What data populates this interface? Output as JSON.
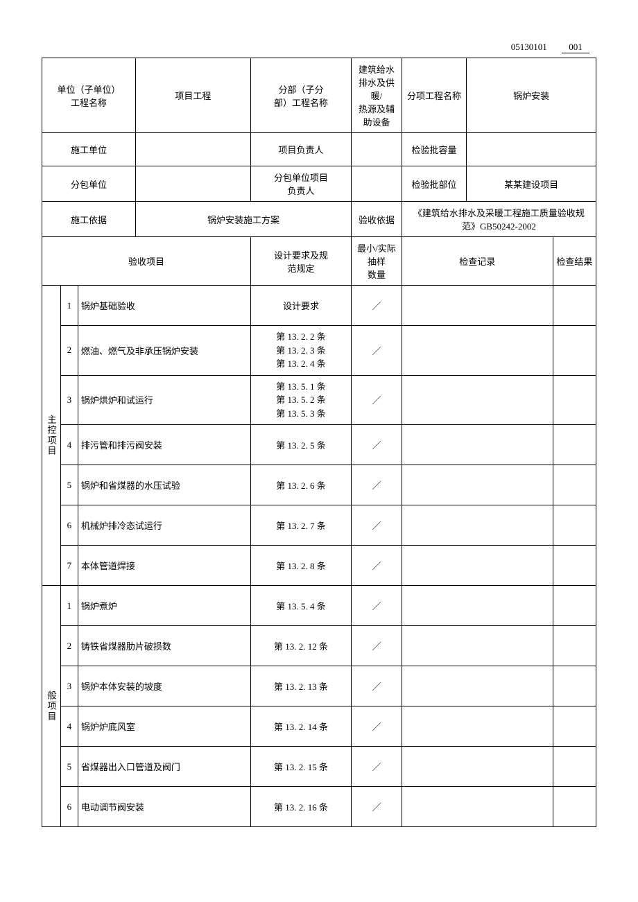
{
  "doc": {
    "code": "05130101",
    "serial": "001"
  },
  "header": {
    "r1": {
      "unit_label": "单位（子单位）\n工程名称",
      "project_label": "项目工程",
      "subpart_label": "分部（子分\n部）工程名称",
      "subpart_value": "建筑给水排水及供暖/\n热源及辅助设备",
      "subitem_label": "分项工程名称",
      "subitem_value": "锅炉安装"
    },
    "r2": {
      "constr_unit_label": "施工单位",
      "constr_unit_value": "",
      "pm_label": "项目负责人",
      "pm_value": "",
      "batch_qty_label": "检验批容量",
      "batch_qty_value": ""
    },
    "r3": {
      "subcontractor_label": "分包单位",
      "subcontractor_value": "",
      "sub_pm_label": "分包单位项目\n负责人",
      "sub_pm_value": "",
      "batch_loc_label": "检验批部位",
      "batch_loc_value": "某某建设项目"
    },
    "r4": {
      "basis_label": "施工依据",
      "basis_value": "锅炉安装施工方案",
      "accept_basis_label": "验收依据",
      "accept_basis_value": "《建筑给水排水及采暖工程施工质量验收规\n范》GB50242-2002"
    }
  },
  "columns": {
    "item": "验收项目",
    "requirement": "设计要求及规\n范规定",
    "sample": "最小/实际抽样\n数量",
    "record": "检查记录",
    "result": "检查结果"
  },
  "group_labels": {
    "main": "主控项目",
    "general": "般项目"
  },
  "main_items": [
    {
      "no": "1",
      "name": "锅炉基础验收",
      "req": "设计要求",
      "sample": "／"
    },
    {
      "no": "2",
      "name": "燃油、燃气及非承压锅炉安装",
      "req": "第 13. 2. 2 条\n第 13. 2. 3 条\n第 13. 2. 4 条",
      "sample": "／"
    },
    {
      "no": "3",
      "name": "锅炉烘炉和试运行",
      "req": "第 13. 5. 1 条\n第 13. 5. 2 条\n第 13. 5. 3 条",
      "sample": "／"
    },
    {
      "no": "4",
      "name": "排污管和排污阀安装",
      "req": "第 13. 2. 5 条",
      "sample": "／"
    },
    {
      "no": "5",
      "name": "锅炉和省煤器的水压试验",
      "req": "第 13. 2. 6 条",
      "sample": "／"
    },
    {
      "no": "6",
      "name": "机械炉排冷态试运行",
      "req": "第 13. 2. 7 条",
      "sample": "／"
    },
    {
      "no": "7",
      "name": "本体管道焊接",
      "req": "第 13. 2. 8 条",
      "sample": "／"
    }
  ],
  "general_items": [
    {
      "no": "1",
      "name": "锅炉煮炉",
      "req": "第 13. 5. 4 条",
      "sample": "／"
    },
    {
      "no": "2",
      "name": "铸铁省煤器肋片破损数",
      "req": "第 13. 2. 12 条",
      "sample": "／"
    },
    {
      "no": "3",
      "name": "锅炉本体安装的坡度",
      "req": "第 13. 2. 13 条",
      "sample": "／"
    },
    {
      "no": "4",
      "name": "锅炉炉底风室",
      "req": "第 13. 2. 14 条",
      "sample": "／"
    },
    {
      "no": "5",
      "name": "省煤器出入口管道及阀门",
      "req": "第 13. 2. 15 条",
      "sample": "／"
    },
    {
      "no": "6",
      "name": "电动调节阀安装",
      "req": "第 13. 2. 16 条",
      "sample": "／"
    }
  ],
  "style": {
    "font_size": 13,
    "border_color": "#000000",
    "background_color": "#ffffff",
    "text_color": "#000000"
  }
}
